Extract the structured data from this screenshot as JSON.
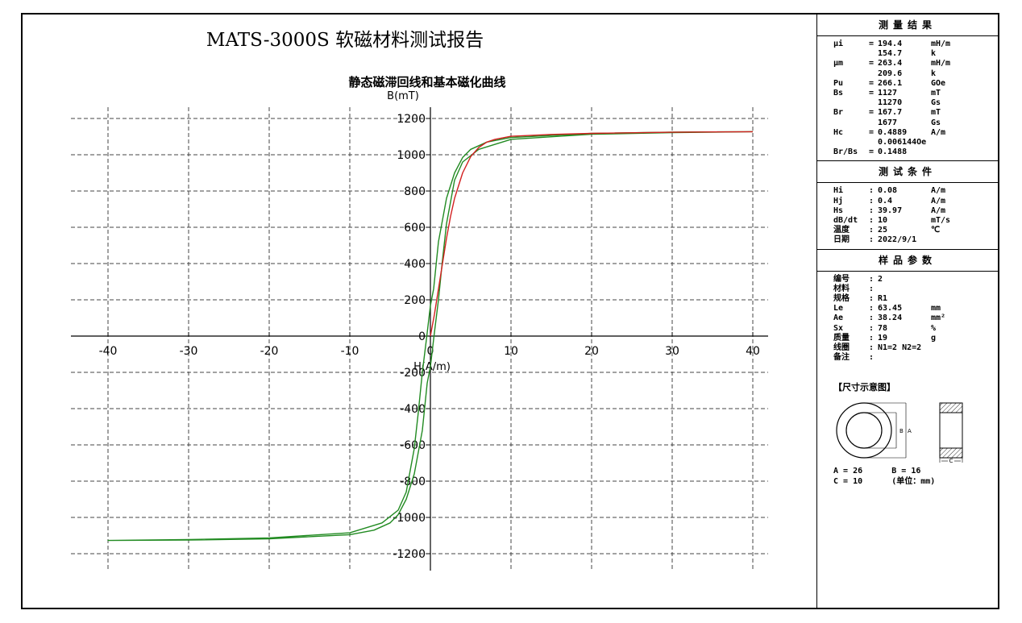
{
  "report_title": "MATS-3000S 软磁材料测试报告",
  "chart_data": {
    "type": "line",
    "title": "静态磁滞回线和基本磁化曲线",
    "xlabel": "H(A/m)",
    "ylabel": "B(mT)",
    "xlim": [
      -40,
      40
    ],
    "ylim": [
      -1200,
      1200
    ],
    "x_ticks": [
      -40,
      -30,
      -20,
      -10,
      0,
      10,
      20,
      30,
      40
    ],
    "y_ticks": [
      -1200,
      -1000,
      -800,
      -600,
      -400,
      -200,
      0,
      200,
      400,
      600,
      800,
      1000,
      1200
    ],
    "x_tick_labels": [
      "-40",
      "-30",
      "-20",
      "-10",
      "0",
      "10",
      "20",
      "30",
      "40"
    ],
    "y_tick_labels": [
      "-1200",
      "-1000",
      "-800",
      "-600",
      "-400",
      "-200",
      "0",
      "200",
      "400",
      "600",
      "800",
      "1000",
      "1200"
    ],
    "grid": true,
    "series": [
      {
        "name": "hysteresis-loop",
        "color": "#228B22",
        "points": [
          [
            40,
            1127
          ],
          [
            30,
            1125
          ],
          [
            20,
            1118
          ],
          [
            10,
            1095
          ],
          [
            7,
            1070
          ],
          [
            5,
            1030
          ],
          [
            4,
            985
          ],
          [
            3,
            900
          ],
          [
            2,
            760
          ],
          [
            1,
            520
          ],
          [
            0.4,
            260
          ],
          [
            0,
            168
          ],
          [
            -0.5,
            -20
          ],
          [
            -1,
            -200
          ],
          [
            -1.5,
            -420
          ],
          [
            -2,
            -620
          ],
          [
            -3,
            -860
          ],
          [
            -4,
            -960
          ],
          [
            -6,
            -1030
          ],
          [
            -10,
            -1085
          ],
          [
            -20,
            -1113
          ],
          [
            -30,
            -1122
          ],
          [
            -40,
            -1127
          ],
          [
            -30,
            -1125
          ],
          [
            -20,
            -1118
          ],
          [
            -10,
            -1095
          ],
          [
            -7,
            -1070
          ],
          [
            -5,
            -1030
          ],
          [
            -4,
            -985
          ],
          [
            -3,
            -900
          ],
          [
            -2,
            -760
          ],
          [
            -1,
            -520
          ],
          [
            -0.4,
            -260
          ],
          [
            0,
            -168
          ],
          [
            0.5,
            20
          ],
          [
            1,
            200
          ],
          [
            1.5,
            420
          ],
          [
            2,
            620
          ],
          [
            3,
            860
          ],
          [
            4,
            960
          ],
          [
            6,
            1030
          ],
          [
            10,
            1085
          ],
          [
            20,
            1113
          ],
          [
            30,
            1122
          ],
          [
            40,
            1127
          ]
        ]
      },
      {
        "name": "basic-magnetization-curve",
        "color": "#D22020",
        "points": [
          [
            0,
            0
          ],
          [
            0.5,
            120
          ],
          [
            1,
            260
          ],
          [
            1.5,
            400
          ],
          [
            2,
            540
          ],
          [
            2.5,
            660
          ],
          [
            3,
            760
          ],
          [
            4,
            900
          ],
          [
            5,
            990
          ],
          [
            6,
            1040
          ],
          [
            7,
            1070
          ],
          [
            8,
            1085
          ],
          [
            10,
            1102
          ],
          [
            15,
            1112
          ],
          [
            20,
            1118
          ],
          [
            30,
            1124
          ],
          [
            40,
            1127
          ]
        ]
      }
    ]
  },
  "results": {
    "header": "测量结果",
    "rows": [
      {
        "name": "μi",
        "sep": "=",
        "value": "194.4",
        "unit": "mH/m"
      },
      {
        "name": "",
        "sep": "",
        "value": "154.7",
        "unit": "k"
      },
      {
        "name": "μm",
        "sep": "=",
        "value": "263.4",
        "unit": "mH/m"
      },
      {
        "name": "",
        "sep": "",
        "value": "209.6",
        "unit": "k"
      },
      {
        "name": "Pu",
        "sep": "=",
        "value": "266.1",
        "unit": "GOe"
      },
      {
        "name": "Bs",
        "sep": "=",
        "value": "1127",
        "unit": "mT"
      },
      {
        "name": "",
        "sep": "",
        "value": "11270",
        "unit": "Gs"
      },
      {
        "name": "Br",
        "sep": "=",
        "value": "167.7",
        "unit": "mT"
      },
      {
        "name": "",
        "sep": "",
        "value": "1677",
        "unit": "Gs"
      },
      {
        "name": "Hc",
        "sep": "=",
        "value": "0.4889",
        "unit": "A/m"
      },
      {
        "name": "",
        "sep": "",
        "value": "0.006144Oe",
        "unit": ""
      },
      {
        "name": "Br/Bs",
        "sep": "=",
        "value": "0.1488",
        "unit": ""
      }
    ]
  },
  "conditions": {
    "header": "测试条件",
    "rows": [
      {
        "name": "Hi",
        "sep": ":",
        "value": "0.08",
        "unit": "A/m"
      },
      {
        "name": "Hj",
        "sep": ":",
        "value": "0.4",
        "unit": "A/m"
      },
      {
        "name": "Hs",
        "sep": ":",
        "value": "39.97",
        "unit": "A/m"
      },
      {
        "name": "dB/dt",
        "sep": ":",
        "value": "10",
        "unit": "mT/s"
      },
      {
        "name": "温度",
        "sep": ":",
        "value": "25",
        "unit": "℃"
      },
      {
        "name": "日期",
        "sep": ":",
        "value": "2022/9/1",
        "unit": ""
      }
    ]
  },
  "sample": {
    "header": "样品参数",
    "rows": [
      {
        "name": "编号",
        "sep": ":",
        "value": "2",
        "unit": ""
      },
      {
        "name": "材料",
        "sep": ":",
        "value": "",
        "unit": ""
      },
      {
        "name": "规格",
        "sep": ":",
        "value": "R1",
        "unit": ""
      },
      {
        "name": "Le",
        "sep": ":",
        "value": "63.45",
        "unit": "mm"
      },
      {
        "name": "Ae",
        "sep": ":",
        "value": "38.24",
        "unit": "mm²"
      },
      {
        "name": "Sx",
        "sep": ":",
        "value": "78",
        "unit": "%"
      },
      {
        "name": "质量",
        "sep": ":",
        "value": "19",
        "unit": "g"
      },
      {
        "name": "线圈",
        "sep": ":",
        "value": "N1=2 N2=2",
        "unit": ""
      },
      {
        "name": "备注",
        "sep": ":",
        "value": "",
        "unit": ""
      }
    ],
    "diagram_title": "【尺寸示意图】",
    "diagram_labels": {
      "b": "B",
      "a": "A",
      "c": "C"
    },
    "dims_line1": "A = 26      B = 16",
    "dims_line2": "C = 10      (单位：mm)"
  },
  "colors": {
    "grid": "#444444",
    "loop": "#228B22",
    "curve": "#D22020"
  }
}
